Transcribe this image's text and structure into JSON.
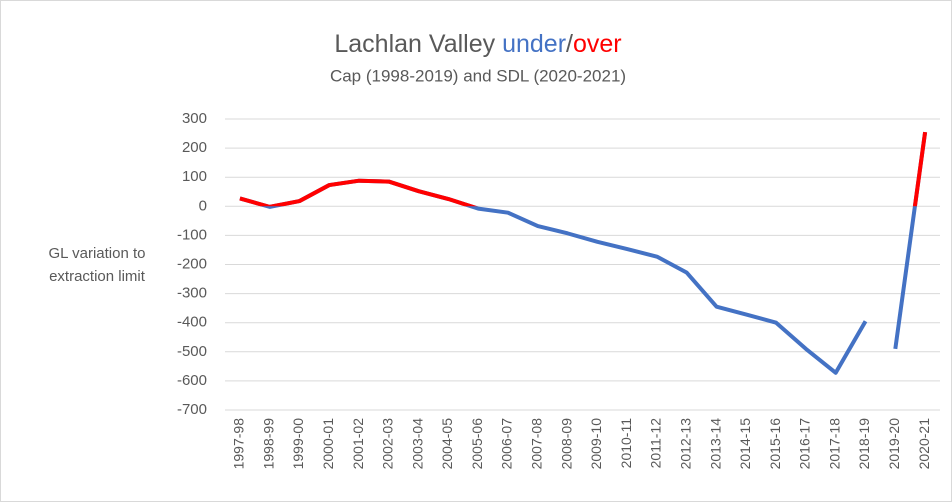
{
  "chart_data": {
    "type": "line",
    "title_parts": [
      "Lachlan Valley ",
      "under",
      "/",
      "over"
    ],
    "subtitle": "Cap (1998-2019) and SDL (2020-2021)",
    "ylabel": "GL variation to extraction limit",
    "categories": [
      "1997-98",
      "1998-99",
      "1999-00",
      "2000-01",
      "2001-02",
      "2002-03",
      "2003-04",
      "2004-05",
      "2005-06",
      "2006-07",
      "2007-08",
      "2008-09",
      "2009-10",
      "2010-11",
      "2011-12",
      "2012-13",
      "2013-14",
      "2014-15",
      "2015-16",
      "2016-17",
      "2017-18",
      "2018-19",
      "2019-20",
      "2020-21"
    ],
    "series": [
      {
        "values": [
          27,
          -2,
          18,
          73,
          88,
          85,
          52,
          25,
          -8,
          -22,
          -68,
          -93,
          -122,
          -147,
          -173,
          -228,
          -345,
          -372,
          -400,
          -490,
          -572,
          -395,
          null,
          null
        ]
      },
      {
        "values": [
          null,
          null,
          null,
          null,
          null,
          null,
          null,
          null,
          null,
          null,
          null,
          null,
          null,
          null,
          null,
          null,
          null,
          null,
          null,
          null,
          null,
          null,
          -490,
          255
        ]
      }
    ],
    "under_color": "#4472c4",
    "over_color": "#ff0000",
    "ylim": [
      -700,
      300
    ],
    "yticks": [
      300,
      200,
      100,
      0,
      -100,
      -200,
      -300,
      -400,
      -500,
      -600,
      -700
    ],
    "grid": true
  }
}
